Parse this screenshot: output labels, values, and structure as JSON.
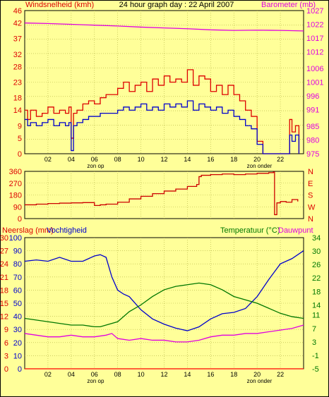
{
  "title": "24 hour graph day : 22 April 2007",
  "sun_labels": {
    "sunrise": "zon op",
    "sunset": "zon onder"
  },
  "x_ticks": [
    "02",
    "04",
    "06",
    "08",
    "10",
    "12",
    "14",
    "16",
    "18",
    "20",
    "22"
  ],
  "colors": {
    "background": "#ffff99",
    "grid": "#b0b040",
    "wind_max": "#dd0000",
    "wind_avg": "#0000cc",
    "barometer": "#e000e0",
    "direction": "#cc0000",
    "humidity": "#0000cc",
    "temperature": "#007700",
    "dewpoint": "#e000e0",
    "rain": "#ff0000"
  },
  "chart_data": [
    {
      "type": "line",
      "name": "wind-barometer",
      "left_axis_label": "Windsnelheid (kmh)",
      "right_axis_label": "Barometer (mb)",
      "left_ticks": [
        0,
        5,
        9,
        14,
        18,
        23,
        28,
        32,
        37,
        42,
        46
      ],
      "right_ticks": [
        975,
        980,
        985,
        991,
        996,
        1001,
        1006,
        1012,
        1017,
        1022,
        1027
      ],
      "xlim": [
        0,
        24
      ],
      "ylim_left": [
        0,
        46
      ],
      "ylim_right": [
        975,
        1027
      ],
      "series": [
        {
          "role": "wind_max",
          "axis": "left",
          "x": [
            0,
            0.25,
            0.5,
            1,
            1.5,
            2,
            2.5,
            3,
            3.5,
            3.8,
            4,
            4.2,
            4.5,
            5,
            5.5,
            6,
            6.5,
            7,
            7.5,
            8,
            8.5,
            9,
            9.5,
            10,
            10.5,
            11,
            11.5,
            12,
            12.5,
            13,
            13.5,
            14,
            14.5,
            15,
            15.5,
            16,
            16.5,
            17,
            17.5,
            18,
            18.5,
            19,
            19.5,
            20,
            20.5,
            21,
            21.5,
            22,
            22.5,
            22.8,
            23,
            23.3,
            23.6
          ],
          "values": [
            14,
            11,
            14,
            12,
            13,
            15,
            13,
            14,
            13,
            15,
            5,
            13,
            14,
            16,
            17,
            16,
            18,
            19,
            19,
            21,
            23,
            20,
            22,
            23,
            20,
            24,
            22,
            25,
            23,
            24,
            23,
            27,
            22,
            25,
            24,
            20,
            22,
            19,
            22,
            19,
            17,
            14,
            12,
            4,
            0,
            0,
            0,
            0,
            0,
            11,
            7,
            9,
            0
          ]
        },
        {
          "role": "wind_avg",
          "axis": "left",
          "x": [
            0,
            0.25,
            0.5,
            1,
            1.5,
            2,
            2.5,
            3,
            3.5,
            3.8,
            4,
            4.2,
            4.5,
            5,
            5.5,
            6,
            6.5,
            7,
            7.5,
            8,
            8.5,
            9,
            9.5,
            10,
            10.5,
            11,
            11.5,
            12,
            12.5,
            13,
            13.5,
            14,
            14.5,
            15,
            15.5,
            16,
            16.5,
            17,
            17.5,
            18,
            18.5,
            19,
            19.5,
            20,
            20.5,
            21,
            21.5,
            22,
            22.5,
            22.8,
            23,
            23.3,
            23.6
          ],
          "values": [
            11,
            9,
            10,
            9,
            10,
            11,
            9,
            10,
            9,
            10,
            1,
            9,
            10,
            11,
            12,
            12,
            13,
            13,
            13,
            14,
            15,
            14,
            15,
            16,
            14,
            15,
            14,
            16,
            15,
            16,
            15,
            17,
            14,
            16,
            15,
            14,
            15,
            13,
            14,
            12,
            11,
            9,
            8,
            3,
            0,
            0,
            0,
            0,
            0,
            6,
            4,
            6,
            0
          ]
        },
        {
          "role": "barometer",
          "axis": "right",
          "x": [
            0,
            2,
            4,
            6,
            8,
            10,
            12,
            14,
            16,
            18,
            20,
            22,
            24
          ],
          "values": [
            1022.5,
            1022.3,
            1022,
            1021.7,
            1021.4,
            1021,
            1020.7,
            1020.4,
            1020,
            1019.8,
            1019.9,
            1019.8,
            1019.6
          ]
        }
      ]
    },
    {
      "type": "line",
      "name": "wind-direction",
      "left_ticks": [
        0,
        90,
        180,
        270,
        360
      ],
      "right_ticks": [
        "N",
        "W",
        "S",
        "E",
        "N"
      ],
      "xlim": [
        0,
        24
      ],
      "ylim_left": [
        0,
        360
      ],
      "series": [
        {
          "role": "direction",
          "axis": "left",
          "x": [
            0,
            1,
            2,
            3,
            4,
            5,
            6,
            6.5,
            7,
            8,
            9,
            10,
            11,
            12,
            13,
            14,
            14.8,
            15,
            15.2,
            16,
            17,
            18,
            19,
            20,
            21,
            21.4,
            21.5,
            21.7,
            22,
            22.5,
            23,
            23.5
          ],
          "values": [
            105,
            110,
            115,
            118,
            120,
            122,
            100,
            105,
            110,
            125,
            150,
            170,
            190,
            210,
            225,
            245,
            260,
            320,
            330,
            335,
            340,
            335,
            340,
            345,
            350,
            355,
            30,
            120,
            130,
            125,
            145,
            130
          ]
        }
      ]
    },
    {
      "type": "line",
      "name": "humidity-temperature",
      "left_axis_label": "Neerslag (mm)",
      "left_axis_label2": "Vochtigheid",
      "right_axis_label": "Temperatuur (°C)",
      "right_axis_label2": "Dauwpunt",
      "left_ticks_outer": [
        0,
        3,
        6,
        9,
        12,
        15,
        18,
        21,
        24,
        27,
        30
      ],
      "left_ticks_inner": [
        0,
        10,
        20,
        30,
        40,
        50,
        60,
        70,
        80,
        90,
        100
      ],
      "right_ticks": [
        -5,
        -1,
        3,
        7,
        11,
        14,
        18,
        22,
        26,
        30,
        34
      ],
      "xlim": [
        0,
        24
      ],
      "ylim_humidity": [
        0,
        100
      ],
      "ylim_temperature": [
        -5,
        34
      ],
      "series": [
        {
          "role": "humidity",
          "axis": "humidity",
          "x": [
            0,
            1,
            2,
            3,
            4,
            5,
            6,
            6.5,
            7,
            7.5,
            8,
            8.5,
            9,
            10,
            11,
            12,
            13,
            14,
            15,
            16,
            17,
            18,
            19,
            20,
            21,
            22,
            23,
            24
          ],
          "values": [
            82,
            83,
            82,
            85,
            82,
            82,
            86,
            87,
            85,
            70,
            60,
            57,
            55,
            45,
            38,
            34,
            31,
            29,
            32,
            38,
            42,
            43,
            46,
            55,
            68,
            80,
            84,
            90
          ]
        },
        {
          "role": "temperature",
          "axis": "temperature",
          "x": [
            0,
            1,
            2,
            3,
            4,
            5,
            6,
            6.5,
            7,
            8,
            9,
            10,
            11,
            12,
            13,
            14,
            15,
            16,
            17,
            18,
            19,
            20,
            21,
            22,
            23,
            24
          ],
          "values": [
            10,
            9.5,
            9,
            8.5,
            8,
            8,
            7.5,
            7.5,
            8,
            9,
            12,
            14,
            16.5,
            18.5,
            19.5,
            20,
            20.5,
            20,
            18.5,
            16.5,
            15.5,
            14.5,
            13,
            11.5,
            10.5,
            10
          ]
        },
        {
          "role": "dewpoint",
          "axis": "temperature",
          "x": [
            0,
            1,
            2,
            3,
            4,
            5,
            6,
            7,
            7.5,
            8,
            9,
            10,
            11,
            12,
            13,
            14,
            15,
            16,
            17,
            18,
            19,
            20,
            21,
            22,
            23,
            24
          ],
          "values": [
            5.5,
            5,
            4.5,
            4.5,
            5,
            4.5,
            4.5,
            5,
            5.5,
            4,
            3.5,
            4,
            3.5,
            3.5,
            3,
            3,
            3.5,
            4.5,
            5,
            5,
            5.5,
            5.5,
            6,
            6.5,
            7,
            8
          ]
        },
        {
          "role": "rain",
          "axis": "humidity",
          "x": [
            0,
            24
          ],
          "values": [
            0,
            0
          ]
        }
      ]
    }
  ]
}
